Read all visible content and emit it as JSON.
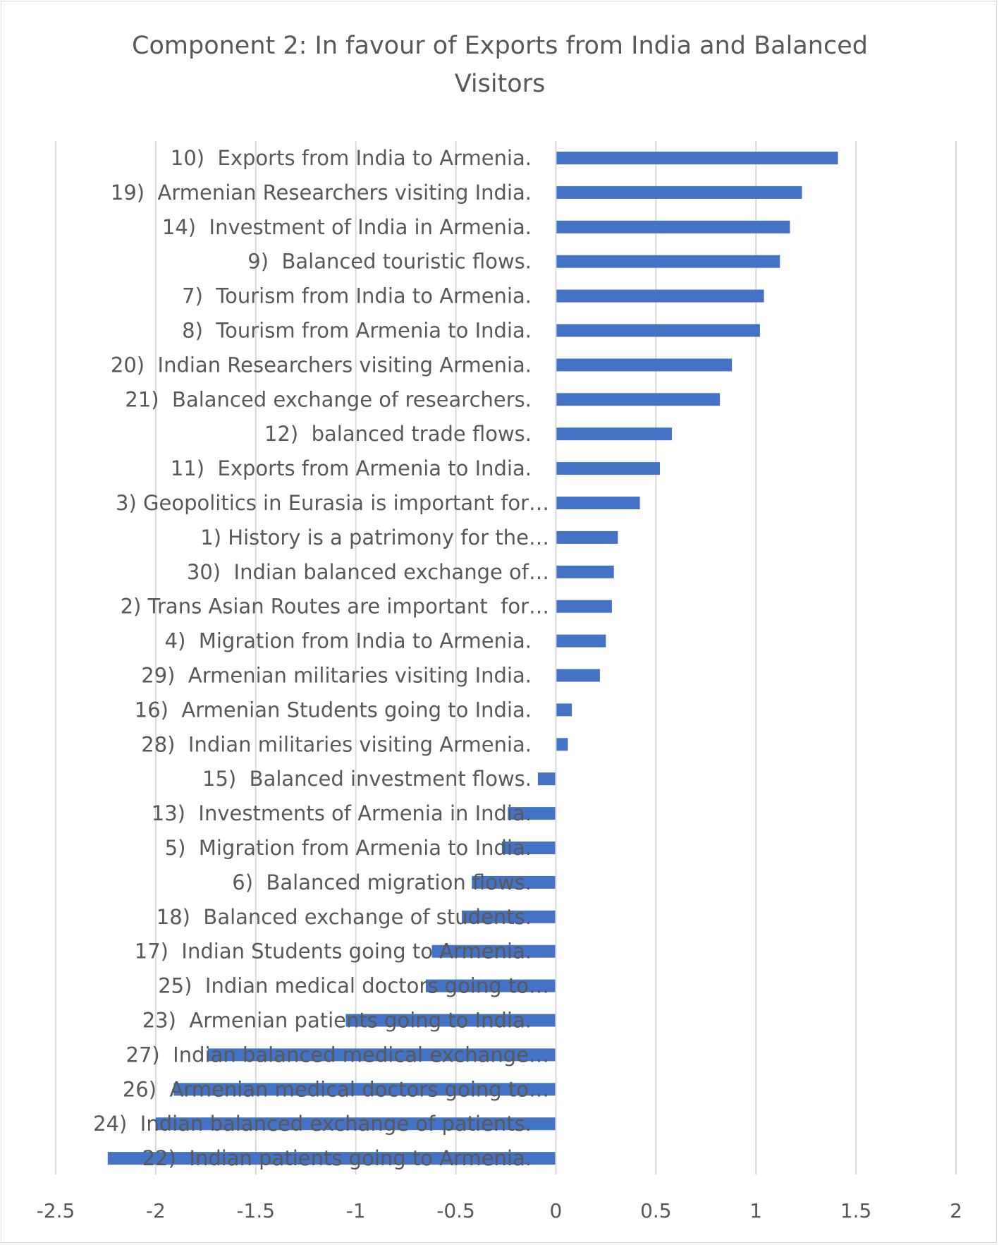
{
  "chart_data": {
    "type": "bar",
    "orientation": "horizontal",
    "title": "Component 2: In favour of Exports from India and Balanced Visitors",
    "title_lines": [
      "Component 2: In favour of Exports from India and Balanced",
      "Visitors"
    ],
    "xlabel": "",
    "ylabel": "",
    "xlim": [
      -2.5,
      2
    ],
    "x_ticks": [
      -2.5,
      -2,
      -1.5,
      -1,
      -0.5,
      0,
      0.5,
      1,
      1.5,
      2
    ],
    "x_tick_labels": [
      "-2.5",
      "-2",
      "-1.5",
      "-1",
      "-0.5",
      "0",
      "0.5",
      "1",
      "1.5",
      "2"
    ],
    "grid": "vertical",
    "legend": "none",
    "bar_color": "#4472c4",
    "categories": [
      "10)  Exports from India to Armenia.",
      "19)  Armenian Researchers visiting India.",
      "14)  Investment of India in Armenia.",
      "9)  Balanced touristic flows.",
      "7)  Tourism from India to Armenia.",
      "8)  Tourism from Armenia to India.",
      "20)  Indian Researchers visiting Armenia.",
      "21)  Balanced exchange of researchers.",
      "12)  balanced trade flows.",
      "11)  Exports from Armenia to India.",
      "3) Geopolitics in Eurasia is important for…",
      "1) History is a patrimony for the…",
      "30)  Indian balanced exchange of…",
      "2) Trans Asian Routes are important  for…",
      "4)  Migration from India to Armenia.",
      "29)  Armenian militaries visiting India.",
      "16)  Armenian Students going to India.",
      "28)  Indian militaries visiting Armenia.",
      "15)  Balanced investment flows.",
      "13)  Investments of Armenia in India.",
      "5)  Migration from Armenia to India.",
      "6)  Balanced migration flows.",
      "18)  Balanced exchange of students.",
      "17)  Indian Students going to Armenia.",
      "25)  Indian medical doctors going to…",
      "23)  Armenian patients going to India.",
      "27)  Indian balanced medical exchange…",
      "26)  Armenian medical doctors going to…",
      "24)  Indian balanced exchange of patients.",
      "22)  Indian patients going to Armenia."
    ],
    "values": [
      1.41,
      1.23,
      1.17,
      1.12,
      1.04,
      1.02,
      0.88,
      0.82,
      0.58,
      0.52,
      0.42,
      0.31,
      0.29,
      0.28,
      0.25,
      0.22,
      0.08,
      0.06,
      -0.09,
      -0.24,
      -0.27,
      -0.42,
      -0.47,
      -0.62,
      -0.65,
      -1.05,
      -1.74,
      -1.91,
      -2.0,
      -2.24
    ]
  }
}
